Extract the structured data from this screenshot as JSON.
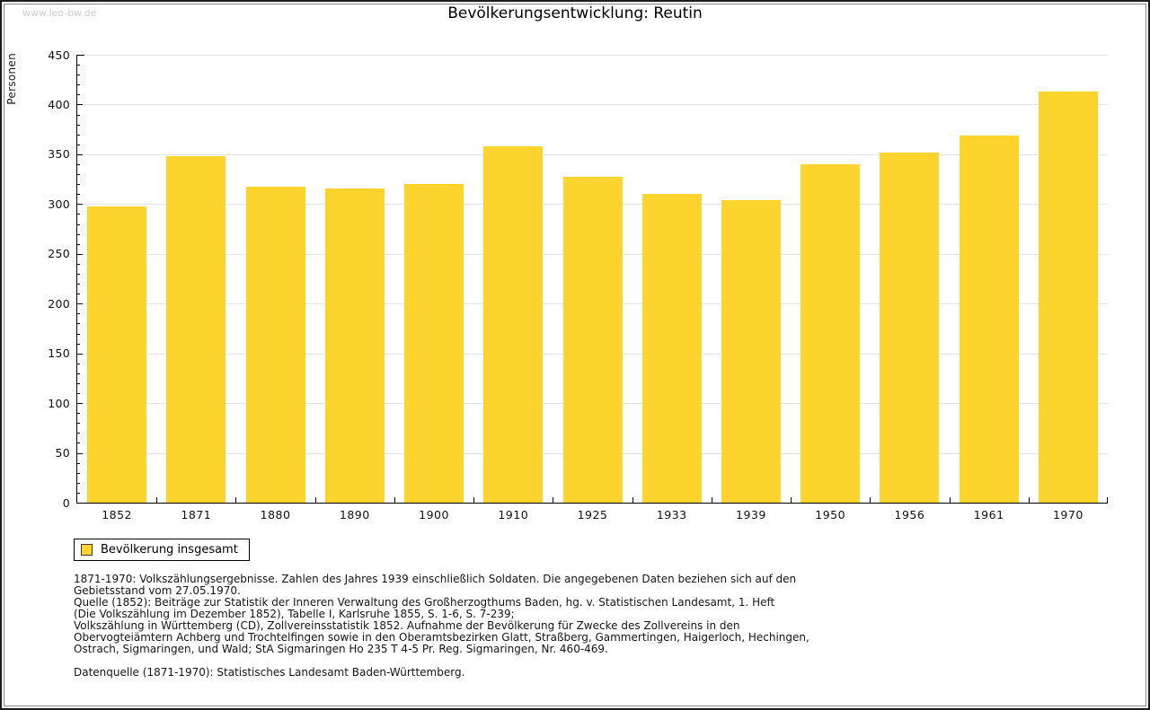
{
  "watermark": "www.leo-bw.de",
  "header": {
    "title": "Bevölkerungsentwicklung: Reutin"
  },
  "legend": {
    "label": "Bevölkerung insgesamt",
    "swatch_color": "#FDD32D"
  },
  "chart_data": {
    "type": "bar",
    "title": "Bevölkerungsentwicklung: Reutin",
    "xlabel": "",
    "ylabel": "Personen",
    "categories": [
      "1852",
      "1871",
      "1880",
      "1890",
      "1900",
      "1910",
      "1925",
      "1933",
      "1939",
      "1950",
      "1956",
      "1961",
      "1970"
    ],
    "series": [
      {
        "name": "Bevölkerung insgesamt",
        "color": "#FDD32D",
        "values": [
          298,
          348,
          317,
          316,
          320,
          358,
          327,
          310,
          304,
          340,
          352,
          369,
          413
        ]
      }
    ],
    "ylim": [
      0,
      450
    ],
    "ytick_step": 50,
    "yminor_step": 10,
    "grid": true,
    "legend_position": "bottom-left"
  },
  "footnotes": {
    "lines": [
      "1871-1970: Volkszählungsergebnisse. Zahlen des Jahres 1939 einschließlich Soldaten. Die angegebenen Daten beziehen sich auf den",
      "Gebietsstand vom 27.05.1970.",
      "Quelle (1852): Beiträge zur Statistik der Inneren Verwaltung des Großherzogthums Baden, hg. v. Statistischen Landesamt, 1. Heft",
      "(Die Volkszählung im Dezember 1852), Tabelle I, Karlsruhe 1855, S. 1-6, S. 7-239;",
      "Volkszählung in Württemberg (CD), Zollvereinsstatistik 1852. Aufnahme der Bevölkerung für Zwecke des Zollvereins in den",
      "Obervogteiämtern Achberg und Trochtelfingen sowie in den Oberamtsbezirken Glatt, Straßberg, Gammertingen, Haigerloch, Hechingen,",
      "Ostrach, Sigmaringen, und Wald; StA Sigmaringen Ho 235 T 4-5 Pr. Reg. Sigmaringen, Nr. 460-469."
    ],
    "datasource": "Datenquelle (1871-1970): Statistisches Landesamt Baden-Württemberg."
  },
  "colors": {
    "bar": "#FDD32D",
    "gridline": "#E4E4E4",
    "axis": "#000000",
    "watermark": "#CCCCCC"
  }
}
